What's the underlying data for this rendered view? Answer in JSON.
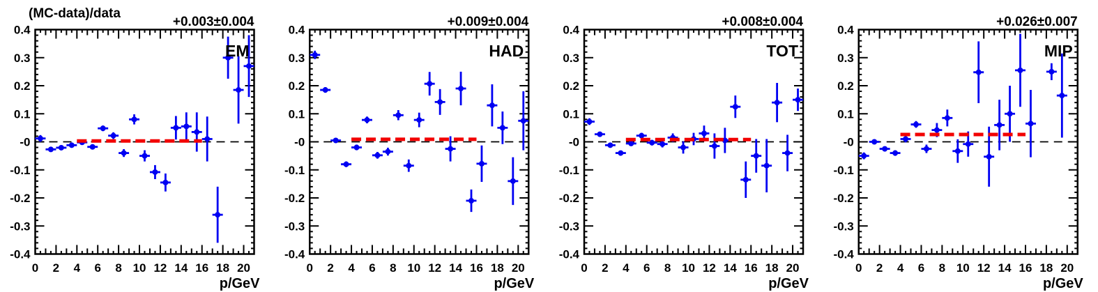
{
  "figure": {
    "title": "(MC-data)/data",
    "x_axis_label": "p/GeV",
    "x_tick_labels": [
      "0",
      "2",
      "4",
      "6",
      "8",
      "10",
      "12",
      "14",
      "16",
      "18",
      "20"
    ],
    "y_tick_labels": [
      "0.4",
      "0.3",
      "0.2",
      "0.1",
      "-0",
      "-0.1",
      "-0.2",
      "-0.3",
      "-0.4"
    ]
  },
  "colors": {
    "marker": "#0000f2",
    "fit_line": "#f20000",
    "fit_text": "#f20000",
    "axis": "#000000",
    "background": "#ffffff"
  },
  "chart_data": [
    {
      "type": "scatter",
      "panel_label": "EM",
      "fit_result_label": "+0.003±0.004",
      "fit_value": 0.003,
      "fit_error": 0.004,
      "fit_x_range": [
        4,
        16
      ],
      "xlim": [
        0,
        21
      ],
      "ylim": [
        -0.4,
        0.4
      ],
      "x_bin_halfwidth": 0.5,
      "points_format": [
        "p_GeV",
        "(MC-data)/data",
        "error"
      ],
      "points": [
        [
          0.5,
          0.012,
          0.012
        ],
        [
          1.5,
          -0.027,
          0.008
        ],
        [
          2.5,
          -0.021,
          0.008
        ],
        [
          3.5,
          -0.012,
          0.008
        ],
        [
          4.5,
          -0.002,
          0.008
        ],
        [
          5.5,
          -0.018,
          0.008
        ],
        [
          6.5,
          0.048,
          0.01
        ],
        [
          7.5,
          0.022,
          0.012
        ],
        [
          8.5,
          -0.04,
          0.014
        ],
        [
          9.5,
          0.08,
          0.018
        ],
        [
          10.5,
          -0.05,
          0.02
        ],
        [
          11.5,
          -0.108,
          0.025
        ],
        [
          12.5,
          -0.145,
          0.032
        ],
        [
          13.5,
          0.05,
          0.042
        ],
        [
          14.5,
          0.055,
          0.05
        ],
        [
          15.5,
          0.035,
          0.07
        ],
        [
          16.5,
          0.01,
          0.08
        ],
        [
          17.5,
          -0.26,
          0.1
        ],
        [
          18.5,
          0.3,
          0.075
        ],
        [
          19.5,
          0.185,
          0.12
        ],
        [
          20.5,
          0.27,
          0.11
        ]
      ]
    },
    {
      "type": "scatter",
      "panel_label": "HAD",
      "fit_result_label": "+0.009±0.004",
      "fit_value": 0.009,
      "fit_error": 0.004,
      "fit_x_range": [
        4,
        16
      ],
      "xlim": [
        0,
        21
      ],
      "ylim": [
        -0.4,
        0.4
      ],
      "x_bin_halfwidth": 0.5,
      "points_format": [
        "p_GeV",
        "(MC-data)/data",
        "error"
      ],
      "points": [
        [
          0.5,
          0.31,
          0.015
        ],
        [
          1.5,
          0.185,
          0.01
        ],
        [
          2.5,
          0.005,
          0.008
        ],
        [
          3.5,
          -0.08,
          0.01
        ],
        [
          4.5,
          -0.02,
          0.01
        ],
        [
          5.5,
          0.078,
          0.012
        ],
        [
          6.5,
          -0.048,
          0.012
        ],
        [
          7.5,
          -0.035,
          0.014
        ],
        [
          8.5,
          0.095,
          0.018
        ],
        [
          9.5,
          -0.085,
          0.022
        ],
        [
          10.5,
          0.078,
          0.026
        ],
        [
          11.5,
          0.207,
          0.042
        ],
        [
          12.5,
          0.142,
          0.046
        ],
        [
          13.5,
          -0.025,
          0.045
        ],
        [
          14.5,
          0.19,
          0.06
        ],
        [
          15.5,
          -0.21,
          0.04
        ],
        [
          16.5,
          -0.078,
          0.065
        ],
        [
          17.5,
          0.13,
          0.075
        ],
        [
          18.5,
          0.05,
          0.058
        ],
        [
          19.5,
          -0.14,
          0.085
        ],
        [
          20.5,
          0.075,
          0.105
        ]
      ]
    },
    {
      "type": "scatter",
      "panel_label": "TOT",
      "fit_result_label": "+0.008±0.004",
      "fit_value": 0.008,
      "fit_error": 0.004,
      "fit_x_range": [
        4,
        16
      ],
      "xlim": [
        0,
        21
      ],
      "ylim": [
        -0.4,
        0.4
      ],
      "x_bin_halfwidth": 0.5,
      "points_format": [
        "p_GeV",
        "(MC-data)/data",
        "error"
      ],
      "points": [
        [
          0.5,
          0.072,
          0.012
        ],
        [
          1.5,
          0.027,
          0.008
        ],
        [
          2.5,
          -0.012,
          0.008
        ],
        [
          3.5,
          -0.04,
          0.008
        ],
        [
          4.5,
          -0.006,
          0.008
        ],
        [
          5.5,
          0.022,
          0.01
        ],
        [
          6.5,
          -0.003,
          0.01
        ],
        [
          7.5,
          -0.008,
          0.012
        ],
        [
          8.5,
          0.015,
          0.015
        ],
        [
          9.5,
          -0.02,
          0.022
        ],
        [
          10.5,
          0.01,
          0.022
        ],
        [
          11.5,
          0.03,
          0.028
        ],
        [
          12.5,
          -0.015,
          0.045
        ],
        [
          13.5,
          0.005,
          0.045
        ],
        [
          14.5,
          0.125,
          0.04
        ],
        [
          15.5,
          -0.135,
          0.065
        ],
        [
          16.5,
          -0.05,
          0.06
        ],
        [
          17.5,
          -0.085,
          0.095
        ],
        [
          18.5,
          0.14,
          0.07
        ],
        [
          19.5,
          -0.04,
          0.065
        ],
        [
          20.5,
          0.15,
          0.04
        ]
      ]
    },
    {
      "type": "scatter",
      "panel_label": "MIP",
      "fit_result_label": "+0.026±0.007",
      "fit_value": 0.026,
      "fit_error": 0.007,
      "fit_x_range": [
        4,
        16
      ],
      "xlim": [
        0,
        21
      ],
      "ylim": [
        -0.4,
        0.4
      ],
      "x_bin_halfwidth": 0.5,
      "points_format": [
        "p_GeV",
        "(MC-data)/data",
        "error"
      ],
      "points": [
        [
          0.5,
          -0.05,
          0.012
        ],
        [
          1.5,
          0.0,
          0.008
        ],
        [
          2.5,
          -0.025,
          0.008
        ],
        [
          3.5,
          -0.04,
          0.01
        ],
        [
          4.5,
          0.01,
          0.012
        ],
        [
          5.5,
          0.062,
          0.012
        ],
        [
          6.5,
          -0.025,
          0.015
        ],
        [
          7.5,
          0.042,
          0.025
        ],
        [
          8.5,
          0.085,
          0.03
        ],
        [
          9.5,
          -0.033,
          0.042
        ],
        [
          10.5,
          -0.008,
          0.045
        ],
        [
          11.5,
          0.248,
          0.11
        ],
        [
          12.5,
          -0.053,
          0.107
        ],
        [
          13.5,
          0.06,
          0.09
        ],
        [
          14.5,
          0.1,
          0.1
        ],
        [
          15.5,
          0.255,
          0.13
        ],
        [
          16.5,
          0.065,
          0.12
        ],
        [
          18.5,
          0.25,
          0.03
        ],
        [
          19.5,
          0.165,
          0.15
        ]
      ]
    }
  ]
}
